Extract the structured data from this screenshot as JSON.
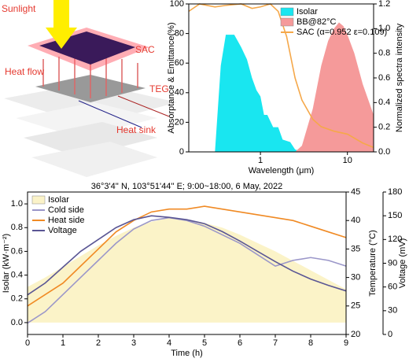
{
  "diagram": {
    "sunlight": "Sunlight",
    "sac": "SAC",
    "heat_flow": "Heat flow",
    "teg": "TEG",
    "heat_sink": "Heat sink"
  },
  "chart_data": [
    {
      "type": "line",
      "xlabel": "Wavelength (μm)",
      "ylabel": "Absorptance & Emittance(%)",
      "y2label": "Normalized spectra intensity",
      "xlog": true,
      "xlim": [
        0.15,
        20
      ],
      "xticks": [
        1,
        10
      ],
      "ylim": [
        0,
        100
      ],
      "yticks": [
        0,
        20,
        40,
        60,
        80,
        100
      ],
      "y2lim": [
        0,
        1.2
      ],
      "y2ticks": [
        {
          "value": 0,
          "label": "0.0"
        },
        0.2,
        0.4,
        0.6,
        0.8,
        {
          "value": 1,
          "label": "1.0"
        },
        1.2
      ],
      "legend": "upper right",
      "series": [
        {
          "name": "Isolar",
          "color": "#19e6f0",
          "style": "area",
          "axis": "y2",
          "x": [
            0.3,
            0.35,
            0.4,
            0.5,
            0.6,
            0.7,
            0.8,
            0.9,
            1.0,
            1.1,
            1.2,
            1.4,
            1.6,
            1.8,
            2.2,
            2.5,
            3
          ],
          "values": [
            0,
            0.7,
            0.95,
            0.95,
            0.85,
            0.75,
            0.6,
            0.5,
            0.45,
            0.3,
            0.3,
            0.2,
            0.2,
            0.1,
            0.08,
            0.02,
            0
          ]
        },
        {
          "name": "BB@82°C",
          "color": "#f59a9a",
          "style": "area",
          "axis": "y2",
          "x": [
            2.5,
            3,
            4,
            5,
            6,
            7,
            8,
            9,
            10,
            12,
            15,
            20
          ],
          "values": [
            0,
            0.05,
            0.35,
            0.7,
            0.9,
            1.0,
            1.05,
            1.02,
            0.95,
            0.8,
            0.55,
            0.3
          ]
        },
        {
          "name": "SAC (α=0.952 ε=0.109)",
          "color": "#f5a84a",
          "style": "line",
          "axis": "y",
          "x": [
            0.15,
            0.2,
            0.3,
            0.4,
            0.6,
            0.8,
            1.0,
            1.3,
            1.6,
            2,
            2.5,
            3,
            4,
            5,
            7,
            10,
            15,
            20
          ],
          "values": [
            95,
            100,
            98,
            99,
            100,
            97,
            98,
            100,
            95,
            78,
            50,
            35,
            22,
            17,
            14,
            12,
            6,
            3
          ]
        }
      ]
    },
    {
      "type": "line",
      "title": "36°3'4'' N, 103°51'44'' E; 9:00~18:00, 6 May, 2022",
      "xlabel": "Time (h)",
      "ylabel": "Isolar (kW·m⁻²)",
      "y2label": "Temperature (°C)",
      "y3label": "Voltage (mV)",
      "xlim": [
        0,
        9
      ],
      "xticks": [
        0,
        1,
        2,
        3,
        4,
        5,
        6,
        7,
        8,
        9
      ],
      "ylim": [
        -0.1,
        1.1
      ],
      "yticks": [
        {
          "value": 0,
          "label": "0.0"
        },
        0.2,
        0.4,
        0.6,
        0.8,
        {
          "value": 1,
          "label": "1.0"
        }
      ],
      "y2lim": [
        20,
        45
      ],
      "y2ticks": [
        20,
        25,
        30,
        35,
        40,
        45
      ],
      "y3lim": [
        0,
        180
      ],
      "y3ticks": [
        0,
        30,
        60,
        90,
        120,
        150,
        180
      ],
      "legend": "upper left",
      "x": [
        0,
        0.5,
        1,
        1.5,
        2,
        2.5,
        3,
        3.5,
        4,
        4.5,
        5,
        5.5,
        6,
        6.5,
        7,
        7.5,
        8,
        8.5,
        9
      ],
      "series": [
        {
          "name": "Isolar",
          "color": "#fbf3c8",
          "style": "area",
          "axis": "y",
          "values": [
            0.3,
            0.38,
            0.47,
            0.56,
            0.65,
            0.73,
            0.8,
            0.85,
            0.88,
            0.87,
            0.84,
            0.8,
            0.74,
            0.67,
            0.6,
            0.52,
            0.44,
            0.36,
            0.28
          ]
        },
        {
          "name": "Cold side",
          "color": "#9b97c9",
          "style": "line",
          "axis": "y2",
          "values": [
            22,
            24,
            27,
            30,
            33,
            36,
            38.5,
            40,
            40.5,
            40,
            39,
            37.5,
            36,
            34,
            32,
            33,
            33.5,
            33,
            32
          ]
        },
        {
          "name": "Heat side",
          "color": "#f08a24",
          "style": "line",
          "axis": "y2",
          "values": [
            25,
            27,
            29,
            32,
            35,
            38,
            40,
            41.5,
            42,
            42,
            42.5,
            42,
            41.5,
            41,
            40.5,
            40,
            39,
            38,
            37
          ]
        },
        {
          "name": "Voltage",
          "color": "#5a5694",
          "style": "line",
          "axis": "y3",
          "values": [
            50,
            65,
            85,
            105,
            120,
            135,
            145,
            150,
            148,
            145,
            140,
            130,
            118,
            105,
            92,
            80,
            70,
            62,
            55
          ]
        }
      ]
    }
  ]
}
